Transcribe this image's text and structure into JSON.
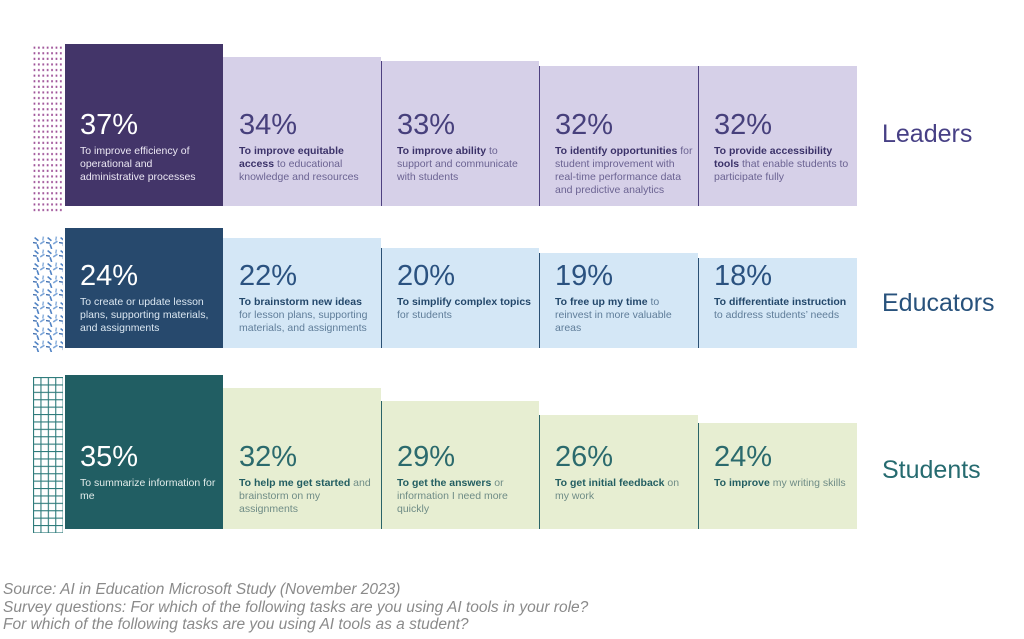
{
  "rows": [
    {
      "label": "Leaders",
      "items": [
        {
          "pct": "37%",
          "value": 37,
          "bold": "",
          "rest": "To improve efficiency of operational and administrative processes"
        },
        {
          "pct": "34%",
          "value": 34,
          "bold": "To improve equitable access",
          "rest": " to educational knowledge and resources"
        },
        {
          "pct": "33%",
          "value": 33,
          "bold": "To improve ability",
          "rest": " to support and communicate with students"
        },
        {
          "pct": "32%",
          "value": 32,
          "bold": "To identify opportunities",
          "rest": " for student improvement with real-time performance data and predictive analytics"
        },
        {
          "pct": "32%",
          "value": 32,
          "bold": "To provide accessibility tools",
          "rest": " that enable students to participate fully"
        }
      ]
    },
    {
      "label": "Educators",
      "items": [
        {
          "pct": "24%",
          "value": 24,
          "bold": "",
          "rest": "To create or update lesson plans, supporting materials, and assignments"
        },
        {
          "pct": "22%",
          "value": 22,
          "bold": "To brainstorm new ideas",
          "rest": " for lesson plans, supporting materials, and assignments"
        },
        {
          "pct": "20%",
          "value": 20,
          "bold": "To simplify complex topics",
          "rest": " for students"
        },
        {
          "pct": "19%",
          "value": 19,
          "bold": "To free up my time",
          "rest": " to reinvest in more valuable areas"
        },
        {
          "pct": "18%",
          "value": 18,
          "bold": "To differentiate instruction",
          "rest": " to address students’ needs"
        }
      ]
    },
    {
      "label": "Students",
      "items": [
        {
          "pct": "35%",
          "value": 35,
          "bold": "",
          "rest": "To summarize information for me"
        },
        {
          "pct": "32%",
          "value": 32,
          "bold": "To help me get started",
          "rest": " and brainstorm on my assignments"
        },
        {
          "pct": "29%",
          "value": 29,
          "bold": "To get the answers",
          "rest": " or information I need more quickly"
        },
        {
          "pct": "26%",
          "value": 26,
          "bold": "To get initial feedback",
          "rest": " on my work"
        },
        {
          "pct": "24%",
          "value": 24,
          "bold": "To improve",
          "rest": " my writing skills"
        }
      ]
    }
  ],
  "footer": {
    "lines": [
      "Source: AI in Education Microsoft Study (November 2023)",
      "Survey questions: For which of the following tasks are you using AI tools in your role?",
      "For which of the following tasks are you using AI tools as a student?"
    ]
  },
  "colors": {
    "leaders": {
      "dark": "#433569",
      "light": "#d6d0e8",
      "label": "#474085",
      "pattern": "#9d4f97"
    },
    "educators": {
      "dark": "#27496d",
      "light": "#d4e7f6",
      "label": "#28527c",
      "pattern": "#4f82c4"
    },
    "students": {
      "dark": "#215e63",
      "light": "#e7eed2",
      "label": "#266b70",
      "pattern": "#2e7b7b"
    }
  },
  "chart_data": [
    {
      "type": "bar",
      "title": "Leaders",
      "unit": "%",
      "categories": [
        "To improve efficiency of operational and administrative processes",
        "To improve equitable access to educational knowledge and resources",
        "To improve ability to support and communicate with students",
        "To identify opportunities for student improvement with real-time performance data and predictive analytics",
        "To provide accessibility tools that enable students to participate fully"
      ],
      "values": [
        37,
        34,
        33,
        32,
        32
      ]
    },
    {
      "type": "bar",
      "title": "Educators",
      "unit": "%",
      "categories": [
        "To create or update lesson plans, supporting materials, and assignments",
        "To brainstorm new ideas for lesson plans, supporting materials, and assignments",
        "To simplify complex topics for students",
        "To free up my time to reinvest in more valuable areas",
        "To differentiate instruction to address students’ needs"
      ],
      "values": [
        24,
        22,
        20,
        19,
        18
      ]
    },
    {
      "type": "bar",
      "title": "Students",
      "unit": "%",
      "categories": [
        "To summarize information for me",
        "To help me get started and brainstorm on my assignments",
        "To get the answers or information I need more quickly",
        "To get initial feedback on my work",
        "To improve my writing skills"
      ],
      "values": [
        35,
        32,
        29,
        26,
        24
      ]
    }
  ]
}
